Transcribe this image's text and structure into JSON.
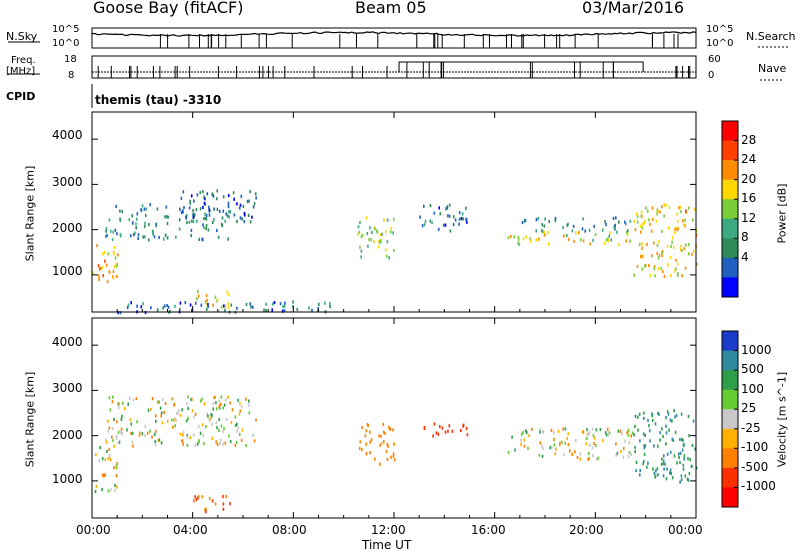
{
  "header": {
    "station": "Goose Bay (fitACF)",
    "beam": "Beam 05",
    "date": "03/Mar/2016"
  },
  "strips": {
    "nsky_label": "N.Sky",
    "nsky_ticks": [
      "10^5",
      "10^0"
    ],
    "nsky_right_ticks": [
      "10^5",
      "10^0"
    ],
    "nsearch_label": "N.Search",
    "freq_label_1": "Freq.",
    "freq_label_2": "[MHz]",
    "freq_ticks": [
      "18",
      "8"
    ],
    "nave_ticks": [
      "60",
      "0"
    ],
    "nave_label": "Nave",
    "cpid_label": "CPID",
    "cpid_value": "themis (tau) -3310"
  },
  "power_panel": {
    "ylabel": "Slant Range [km]",
    "yticks": [
      "4000",
      "3000",
      "2000",
      "1000"
    ],
    "colorbar_label": "Power [dB]",
    "colorbar_ticks": [
      "28",
      "24",
      "20",
      "16",
      "12",
      "8",
      "4"
    ],
    "colors": [
      "#ff0000",
      "#ff4000",
      "#ff8c00",
      "#ffd700",
      "#7ccd3c",
      "#3caa80",
      "#2e8b57",
      "#2060c0",
      "#0000ff"
    ]
  },
  "velocity_panel": {
    "ylabel": "Slant Range [km]",
    "yticks": [
      "4000",
      "3000",
      "2000",
      "1000"
    ],
    "colorbar_label": "Velocity [m s^-1]",
    "colorbar_ticks": [
      "1000",
      "500",
      "100",
      "25",
      "-25",
      "-100",
      "-500",
      "-1000"
    ],
    "colors": [
      "#1a3cc8",
      "#2e8ba0",
      "#2f9e4a",
      "#66cc33",
      "#c8c8c8",
      "#ffb000",
      "#ff8000",
      "#ff3000",
      "#ff0000"
    ]
  },
  "xaxis": {
    "label": "Time UT",
    "ticks": [
      "00:00",
      "04:00",
      "08:00",
      "12:00",
      "16:00",
      "20:00",
      "00:00"
    ]
  },
  "chart_data": [
    {
      "type": "heatmap",
      "title": "Power",
      "xlabel": "Time UT",
      "ylabel": "Slant Range [km]",
      "xlim_hours": [
        0,
        24
      ],
      "ylim_km": [
        180,
        4600
      ],
      "colorbar": {
        "label": "Power [dB]",
        "range": [
          0,
          32
        ],
        "ticks": [
          4,
          8,
          12,
          16,
          20,
          24,
          28
        ]
      },
      "scatter_regions": [
        {
          "t_start": 0.0,
          "t_end": 1.0,
          "r_start": 800,
          "r_end": 1800,
          "level": 22
        },
        {
          "t_start": 0.5,
          "t_end": 5.5,
          "r_start": 1800,
          "r_end": 2600,
          "level": 9
        },
        {
          "t_start": 3.5,
          "t_end": 6.5,
          "r_start": 2200,
          "r_end": 2900,
          "level": 6
        },
        {
          "t_start": 4.0,
          "t_end": 5.5,
          "r_start": 300,
          "r_end": 700,
          "level": 18
        },
        {
          "t_start": 1.0,
          "t_end": 10.0,
          "r_start": 200,
          "r_end": 450,
          "level": 7
        },
        {
          "t_start": 10.5,
          "t_end": 12.0,
          "r_start": 1400,
          "r_end": 2300,
          "level": 16
        },
        {
          "t_start": 13.0,
          "t_end": 15.0,
          "r_start": 2000,
          "r_end": 2600,
          "level": 8
        },
        {
          "t_start": 16.5,
          "t_end": 21.5,
          "r_start": 1700,
          "r_end": 2000,
          "level": 18
        },
        {
          "t_start": 17.0,
          "t_end": 21.5,
          "r_start": 2000,
          "r_end": 2300,
          "level": 9
        },
        {
          "t_start": 21.5,
          "t_end": 24.0,
          "r_start": 1000,
          "r_end": 2600,
          "level": 20
        }
      ]
    },
    {
      "type": "heatmap",
      "title": "Velocity",
      "xlabel": "Time UT",
      "ylabel": "Slant Range [km]",
      "xlim_hours": [
        0,
        24
      ],
      "ylim_km": [
        180,
        4600
      ],
      "colorbar": {
        "label": "Velocity [m s^-1]",
        "ticks": [
          1000,
          500,
          100,
          25,
          -25,
          -100,
          -500,
          -1000
        ]
      },
      "scatter_regions": [
        {
          "t_start": 0.0,
          "t_end": 1.0,
          "r_start": 800,
          "r_end": 1800,
          "level": 0
        },
        {
          "t_start": 0.5,
          "t_end": 6.5,
          "r_start": 1800,
          "r_end": 2900,
          "level": 0
        },
        {
          "t_start": 4.0,
          "t_end": 5.5,
          "r_start": 300,
          "r_end": 700,
          "level": -300
        },
        {
          "t_start": 10.5,
          "t_end": 12.0,
          "r_start": 1400,
          "r_end": 2300,
          "level": -150
        },
        {
          "t_start": 13.0,
          "t_end": 15.0,
          "r_start": 2000,
          "r_end": 2300,
          "level": -600
        },
        {
          "t_start": 16.5,
          "t_end": 21.5,
          "r_start": 1500,
          "r_end": 2200,
          "level": 0
        },
        {
          "t_start": 21.5,
          "t_end": 24.0,
          "r_start": 1000,
          "r_end": 2600,
          "level": 300
        }
      ]
    }
  ]
}
